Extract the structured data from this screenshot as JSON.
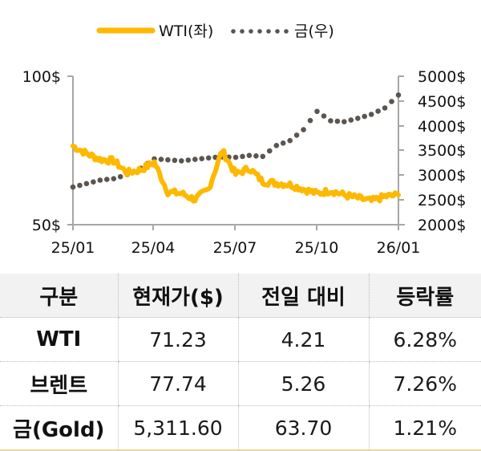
{
  "chart_data": {
    "type": "line",
    "title": "",
    "legend": {
      "position": "top",
      "entries": [
        {
          "name": "WTI(좌)",
          "style": "solid",
          "color": "#FFB800",
          "axis": "left"
        },
        {
          "name": "금(우)",
          "style": "dotted",
          "color": "#5B5550",
          "axis": "right"
        }
      ]
    },
    "x_tick_labels": [
      "25/01",
      "25/04",
      "25/07",
      "25/10",
      "26/01"
    ],
    "left_axis": {
      "label": "",
      "ylim": [
        50,
        100
      ],
      "tick_labels": [
        "100$",
        "50$"
      ],
      "ticks": [
        100,
        50
      ]
    },
    "right_axis": {
      "label": "",
      "ylim": [
        2000,
        5000
      ],
      "tick_labels": [
        "5000$",
        "4500$",
        "4000$",
        "3500$",
        "3000$",
        "2500$",
        "2000$"
      ],
      "ticks": [
        5000,
        4500,
        4000,
        3500,
        3000,
        2500,
        2000
      ]
    },
    "grid": false,
    "x": [
      "25/01",
      "25/01b",
      "25/02",
      "25/02b",
      "25/03",
      "25/03b",
      "25/04",
      "25/04b",
      "25/05",
      "25/05b",
      "25/06",
      "25/06b",
      "25/07",
      "25/07b",
      "25/08",
      "25/08b",
      "25/09",
      "25/09b",
      "25/10",
      "25/10b",
      "25/11",
      "25/11b",
      "25/12",
      "25/12b",
      "26/01"
    ],
    "series": [
      {
        "name": "WTI(좌)",
        "axis": "left",
        "values": [
          76.5,
          74.0,
          72.0,
          71.5,
          67.5,
          68.5,
          71.0,
          61.0,
          60.5,
          58.5,
          62.0,
          75.0,
          67.0,
          69.0,
          64.5,
          64.0,
          63.5,
          62.0,
          60.5,
          61.5,
          60.0,
          59.0,
          58.0,
          59.5,
          60.0
        ]
      },
      {
        "name": "금(우)",
        "axis": "right",
        "values": [
          2760,
          2830,
          2900,
          2930,
          3010,
          3140,
          3330,
          3310,
          3290,
          3320,
          3350,
          3370,
          3360,
          3400,
          3380,
          3600,
          3700,
          3920,
          4290,
          4100,
          4080,
          4150,
          4230,
          4360,
          4620
        ]
      }
    ]
  },
  "legend": {
    "wti_label": "WTI(좌)",
    "gold_label": "금(우)"
  },
  "axes": {
    "left_ticks": [
      "100$",
      "50$"
    ],
    "right_ticks": [
      "5000$",
      "4500$",
      "4000$",
      "3500$",
      "3000$",
      "2500$",
      "2000$"
    ],
    "x_ticks": [
      "25/01",
      "25/04",
      "25/07",
      "25/10",
      "26/01"
    ]
  },
  "table": {
    "headers": [
      "구분",
      "현재가($)",
      "전일 대비",
      "등락률"
    ],
    "rows": [
      {
        "name": "WTI",
        "price": "71.23",
        "change": "4.21",
        "rate": "6.28%"
      },
      {
        "name": "브렌트",
        "price": "77.74",
        "change": "5.26",
        "rate": "7.26%"
      },
      {
        "name": "금(Gold)",
        "price": "5,311.60",
        "change": "63.70",
        "rate": "1.21%"
      }
    ]
  },
  "colors": {
    "wti": "#FFB800",
    "gold": "#5B5550",
    "axis": "#A6A6A6",
    "header_bg": "#F2F2F2"
  }
}
